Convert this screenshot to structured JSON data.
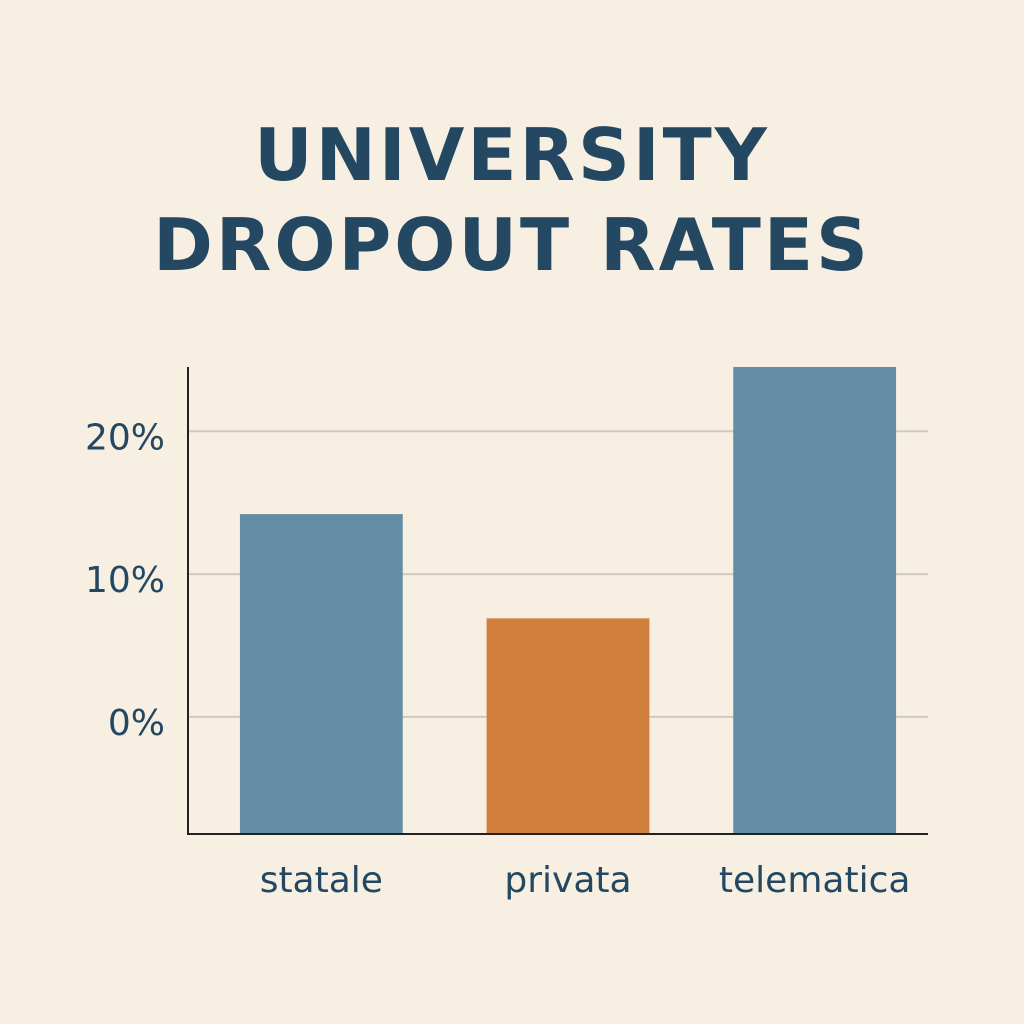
{
  "chart_data": {
    "type": "bar",
    "title": "UNIVERSITY DROPOUT RATES",
    "categories": [
      "statale",
      "privata",
      "telematica"
    ],
    "values": [
      14.2,
      6.9,
      24.5
    ],
    "colors": [
      "#628da5",
      "#d17f3c",
      "#628da5"
    ],
    "ylim": [
      -8.2,
      24.5
    ],
    "yticks": [
      {
        "value": 0,
        "label": "0%"
      },
      {
        "value": 10,
        "label": "10%"
      },
      {
        "value": 20,
        "label": "20%"
      }
    ],
    "grid": true
  }
}
